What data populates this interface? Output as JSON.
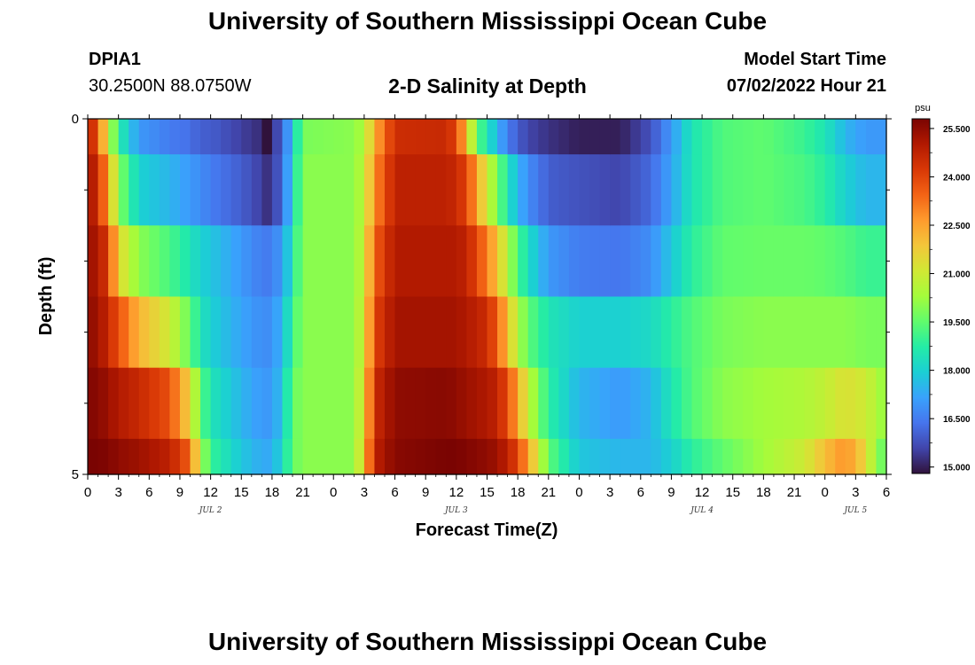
{
  "header": {
    "title": "University of Southern Mississippi Ocean Cube",
    "station_id": "DPIA1",
    "station_coords": "30.2500N  88.0750W",
    "plot_title": "2-D Salinity at Depth",
    "model_label": "Model Start Time",
    "model_time": "07/02/2022 Hour 21"
  },
  "footer": {
    "title": "University of Southern Mississippi Ocean Cube"
  },
  "chart_data": {
    "type": "heatmap",
    "title": "2-D Salinity at Depth",
    "xlabel": "Forecast Time(Z)",
    "ylabel": "Depth (ft)",
    "colorbar_unit": "psu",
    "colorbar_ticks": [
      25.5,
      24.0,
      22.5,
      21.0,
      19.5,
      18.0,
      16.5,
      15.0
    ],
    "colorbar_range": [
      14.8,
      25.8
    ],
    "colormap": [
      "#30123b",
      "#4145ab",
      "#4675ed",
      "#39a2fc",
      "#1bcfd4",
      "#24eca6",
      "#61fc6c",
      "#a4fc3b",
      "#d1e834",
      "#f3c63a",
      "#fe9b2d",
      "#f36315",
      "#d93806",
      "#b11901",
      "#7a0402"
    ],
    "y_tick_labels": [
      "0",
      "5"
    ],
    "y_range": [
      0,
      5
    ],
    "x_tick_labels": [
      "0",
      "3",
      "6",
      "9",
      "12",
      "15",
      "18",
      "21",
      "0",
      "3",
      "6",
      "9",
      "12",
      "15",
      "18",
      "21",
      "0",
      "3",
      "6",
      "9",
      "12",
      "15",
      "18",
      "21",
      "0",
      "3",
      "6"
    ],
    "date_labels": [
      {
        "label": "JUL 2",
        "at_hours": 12
      },
      {
        "label": "JUL 3",
        "at_hours": 36
      },
      {
        "label": "JUL 4",
        "at_hours": 60
      },
      {
        "label": "JUL 5",
        "at_hours": 75
      }
    ],
    "x_range_hours": [
      0,
      78
    ],
    "depth_levels": [
      0,
      1,
      2,
      3,
      4,
      5
    ],
    "keyframes": [
      {
        "h": 0,
        "s": [
          25.2,
          25.3,
          25.4,
          25.5,
          25.7,
          25.8
        ]
      },
      {
        "h": 1,
        "s": [
          23.5,
          24.5,
          25.0,
          25.3,
          25.6,
          25.8
        ]
      },
      {
        "h": 2,
        "s": [
          21.0,
          22.5,
          24.2,
          24.6,
          25.3,
          25.7
        ]
      },
      {
        "h": 3,
        "s": [
          18.8,
          20.0,
          21.5,
          23.8,
          25.0,
          25.5
        ]
      },
      {
        "h": 5,
        "s": [
          17.0,
          18.0,
          20.0,
          22.2,
          24.6,
          25.3
        ]
      },
      {
        "h": 8,
        "s": [
          16.5,
          17.5,
          19.2,
          21.0,
          23.8,
          24.8
        ]
      },
      {
        "h": 10,
        "s": [
          16.3,
          17.0,
          18.5,
          19.5,
          21.5,
          23.5
        ]
      },
      {
        "h": 11,
        "s": [
          16.0,
          16.8,
          18.0,
          18.5,
          19.5,
          20.5
        ]
      },
      {
        "h": 12,
        "s": [
          16.0,
          16.5,
          17.8,
          18.0,
          18.5,
          19.0
        ]
      },
      {
        "h": 15,
        "s": [
          15.5,
          16.0,
          17.0,
          17.2,
          17.5,
          17.8
        ]
      },
      {
        "h": 17,
        "s": [
          15.2,
          15.5,
          16.5,
          16.8,
          17.0,
          17.3
        ]
      },
      {
        "h": 17.5,
        "s": [
          14.8,
          15.3,
          16.5,
          16.8,
          17.0,
          17.3
        ]
      },
      {
        "h": 18,
        "s": [
          15.3,
          15.4,
          16.6,
          16.9,
          17.0,
          17.3
        ]
      },
      {
        "h": 19,
        "s": [
          16.0,
          16.2,
          17.0,
          17.5,
          17.8,
          18.2
        ]
      },
      {
        "h": 20,
        "s": [
          17.8,
          18.0,
          18.5,
          19.0,
          19.5,
          19.5
        ]
      },
      {
        "h": 21,
        "s": [
          19.8,
          20.0,
          20.0,
          20.0,
          20.0,
          20.0
        ]
      },
      {
        "h": 26,
        "s": [
          20.0,
          20.0,
          20.0,
          20.0,
          20.0,
          20.0
        ]
      },
      {
        "h": 27,
        "s": [
          20.5,
          20.8,
          21.0,
          21.2,
          21.5,
          21.8
        ]
      },
      {
        "h": 28,
        "s": [
          22.3,
          22.8,
          23.5,
          24.0,
          24.5,
          24.8
        ]
      },
      {
        "h": 30,
        "s": [
          24.5,
          24.8,
          25.0,
          25.2,
          25.5,
          25.6
        ]
      },
      {
        "h": 35,
        "s": [
          24.6,
          24.8,
          25.0,
          25.2,
          25.6,
          25.8
        ]
      },
      {
        "h": 36,
        "s": [
          24.0,
          24.6,
          25.0,
          25.2,
          25.5,
          25.8
        ]
      },
      {
        "h": 37,
        "s": [
          22.0,
          24.0,
          24.7,
          25.0,
          25.3,
          25.7
        ]
      },
      {
        "h": 38,
        "s": [
          19.5,
          22.5,
          24.0,
          24.8,
          25.2,
          25.6
        ]
      },
      {
        "h": 39,
        "s": [
          18.5,
          21.0,
          23.0,
          24.5,
          25.0,
          25.5
        ]
      },
      {
        "h": 40,
        "s": [
          17.5,
          19.8,
          22.0,
          23.6,
          24.8,
          25.3
        ]
      },
      {
        "h": 41,
        "s": [
          16.5,
          18.5,
          20.5,
          22.0,
          23.8,
          24.8
        ]
      },
      {
        "h": 42,
        "s": [
          16.0,
          17.5,
          19.3,
          20.5,
          22.5,
          24.0
        ]
      },
      {
        "h": 43,
        "s": [
          15.6,
          16.8,
          18.3,
          19.5,
          20.8,
          22.5
        ]
      },
      {
        "h": 45,
        "s": [
          15.3,
          16.0,
          17.0,
          18.5,
          18.8,
          19.5
        ]
      },
      {
        "h": 48,
        "s": [
          15.0,
          15.8,
          16.5,
          18.0,
          17.5,
          17.8
        ]
      },
      {
        "h": 52,
        "s": [
          15.0,
          15.6,
          16.4,
          18.0,
          17.0,
          17.5
        ]
      },
      {
        "h": 55,
        "s": [
          15.8,
          16.2,
          16.8,
          18.2,
          17.5,
          17.5
        ]
      },
      {
        "h": 57,
        "s": [
          17.0,
          17.2,
          17.8,
          18.8,
          18.5,
          18.0
        ]
      },
      {
        "h": 59,
        "s": [
          18.5,
          18.5,
          18.8,
          19.3,
          19.3,
          18.8
        ]
      },
      {
        "h": 62,
        "s": [
          19.3,
          19.3,
          19.5,
          19.8,
          20.0,
          19.5
        ]
      },
      {
        "h": 66,
        "s": [
          19.5,
          19.5,
          19.6,
          20.0,
          20.3,
          20.3
        ]
      },
      {
        "h": 70,
        "s": [
          19.0,
          19.2,
          19.6,
          20.0,
          20.5,
          21.0
        ]
      },
      {
        "h": 72,
        "s": [
          18.5,
          18.8,
          19.5,
          20.0,
          20.8,
          22.0
        ]
      },
      {
        "h": 74,
        "s": [
          17.5,
          18.0,
          19.3,
          20.0,
          21.3,
          22.8
        ]
      },
      {
        "h": 76,
        "s": [
          17.0,
          17.5,
          19.0,
          19.8,
          21.0,
          21.5
        ]
      },
      {
        "h": 77,
        "s": [
          17.0,
          17.5,
          19.0,
          19.8,
          20.5,
          20.0
        ]
      },
      {
        "h": 78,
        "s": [
          17.0,
          17.5,
          19.0,
          19.8,
          20.0,
          19.5
        ]
      }
    ]
  }
}
